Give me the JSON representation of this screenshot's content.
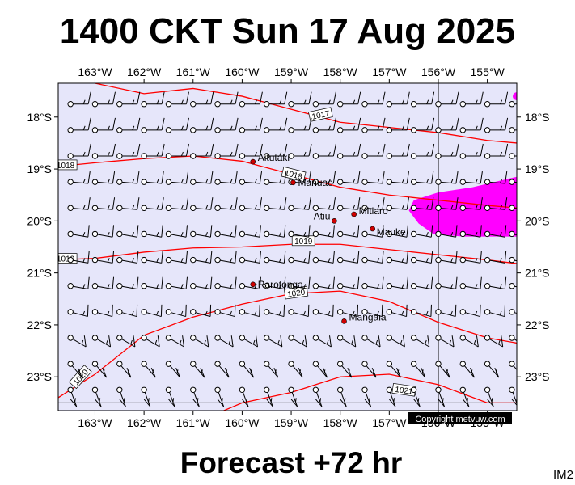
{
  "title": "1400 CKT Sun 17 Aug 2025",
  "footer": "Forecast +72 hr",
  "image_tag": "IM2",
  "copyright": "Copyright metvuw.com",
  "map": {
    "lon_range": [
      -163.75,
      -154.4
    ],
    "lat_range": [
      -17.35,
      -23.65
    ],
    "lon_ticks": [
      "163°W",
      "162°W",
      "161°W",
      "160°W",
      "159°W",
      "158°W",
      "157°W",
      "156°W",
      "155°W"
    ],
    "lon_values": [
      -163,
      -162,
      -161,
      -160,
      -159,
      -158,
      -157,
      -156,
      -155
    ],
    "lat_ticks": [
      "18°S",
      "19°S",
      "20°S",
      "21°S",
      "22°S",
      "23°S"
    ],
    "lat_values": [
      -18,
      -19,
      -20,
      -21,
      -22,
      -23
    ],
    "background_color": "#e6e6fa",
    "isobar_color": "#ff0000",
    "rain_color": "#ff00ff",
    "gridlines": [
      {
        "lon": -156
      },
      {
        "lat": -23.5
      }
    ],
    "places": [
      {
        "name": "Aitutaki",
        "lon": -159.78,
        "lat": -18.86
      },
      {
        "name": "Manuae",
        "lon": -158.96,
        "lat": -19.26
      },
      {
        "name": "Mitiaro",
        "lon": -157.72,
        "lat": -19.87
      },
      {
        "name": "Atiu",
        "lon": -158.12,
        "lat": -20.0
      },
      {
        "name": "Mauke",
        "lon": -157.34,
        "lat": -20.15
      },
      {
        "name": "Rarotonga",
        "lon": -159.78,
        "lat": -21.22
      },
      {
        "name": "Mangaia",
        "lon": -157.92,
        "lat": -21.93
      }
    ],
    "isobars": [
      {
        "label": "1017",
        "points": [
          [
            -163,
            -17.35
          ],
          [
            -162,
            -17.55
          ],
          [
            -161,
            -17.45
          ],
          [
            -160,
            -17.6
          ],
          [
            -159,
            -17.85
          ],
          [
            -158,
            -18.1
          ],
          [
            -157,
            -18.2
          ],
          [
            -156,
            -18.3
          ],
          [
            -155,
            -18.45
          ],
          [
            -154.4,
            -18.5
          ]
        ]
      },
      {
        "label": "1018",
        "points": [
          [
            -163.75,
            -18.95
          ],
          [
            -163,
            -18.88
          ],
          [
            -162,
            -18.8
          ],
          [
            -161,
            -18.75
          ],
          [
            -160,
            -18.85
          ],
          [
            -159,
            -19.1
          ],
          [
            -158,
            -19.35
          ],
          [
            -157,
            -19.5
          ],
          [
            -156,
            -19.6
          ],
          [
            -155,
            -19.7
          ],
          [
            -154.4,
            -19.75
          ]
        ]
      },
      {
        "label": "1019",
        "points": [
          [
            -163.75,
            -20.75
          ],
          [
            -163,
            -20.72
          ],
          [
            -162,
            -20.6
          ],
          [
            -161,
            -20.52
          ],
          [
            -160,
            -20.5
          ],
          [
            -159,
            -20.45
          ],
          [
            -158,
            -20.45
          ],
          [
            -157,
            -20.55
          ],
          [
            -156,
            -20.65
          ],
          [
            -155,
            -20.75
          ],
          [
            -154.4,
            -20.82
          ]
        ]
      },
      {
        "label": "1020",
        "points": [
          [
            -163.75,
            -23.4
          ],
          [
            -163,
            -22.95
          ],
          [
            -162,
            -22.2
          ],
          [
            -161,
            -21.85
          ],
          [
            -160,
            -21.6
          ],
          [
            -159,
            -21.4
          ],
          [
            -158,
            -21.35
          ],
          [
            -157,
            -21.55
          ],
          [
            -156,
            -21.95
          ],
          [
            -155,
            -22.25
          ],
          [
            -154.4,
            -22.35
          ]
        ]
      },
      {
        "label": "1021",
        "points": [
          [
            -161,
            -23.9
          ],
          [
            -160,
            -23.5
          ],
          [
            -159,
            -23.3
          ],
          [
            -158,
            -23.0
          ],
          [
            -157,
            -22.95
          ],
          [
            -156,
            -23.15
          ],
          [
            -155,
            -23.5
          ],
          [
            -154.4,
            -23.5
          ]
        ]
      }
    ],
    "rain_polygon": [
      [
        -156.5,
        -19.6
      ],
      [
        -156.0,
        -19.45
      ],
      [
        -155.3,
        -19.35
      ],
      [
        -154.4,
        -19.15
      ],
      [
        -154.4,
        -20.3
      ],
      [
        -155.5,
        -20.3
      ],
      [
        -156.1,
        -20.25
      ],
      [
        -156.4,
        -20.05
      ],
      [
        -156.6,
        -19.8
      ]
    ],
    "wind_field": {
      "lon_step": 0.5,
      "lat_step": 0.5,
      "start_lon": -163.5,
      "start_lat": -17.75,
      "rows": 13,
      "cols": 19,
      "description_rows": [
        {
          "lat": -17.75,
          "dir_deg": 90,
          "kt": 10
        },
        {
          "lat": -18.25,
          "dir_deg": 90,
          "kt": 10
        },
        {
          "lat": -18.75,
          "dir_deg": 90,
          "kt": 10
        },
        {
          "lat": -19.25,
          "dir_deg": 95,
          "kt": 10
        },
        {
          "lat": -19.75,
          "dir_deg": 95,
          "kt": 10
        },
        {
          "lat": -20.25,
          "dir_deg": 100,
          "kt": 10
        },
        {
          "lat": -20.75,
          "dir_deg": 100,
          "kt": 10
        },
        {
          "lat": -21.25,
          "dir_deg": 100,
          "kt": 10
        },
        {
          "lat": -21.75,
          "dir_deg": 105,
          "kt": 10
        },
        {
          "lat": -22.25,
          "dir_deg": 120,
          "kt": 10
        },
        {
          "lat": -22.75,
          "dir_deg": 140,
          "kt": 10
        },
        {
          "lat": -23.25,
          "dir_deg": 160,
          "kt": 10
        },
        {
          "lat": -23.75,
          "dir_deg": 175,
          "kt": 10
        }
      ]
    }
  }
}
